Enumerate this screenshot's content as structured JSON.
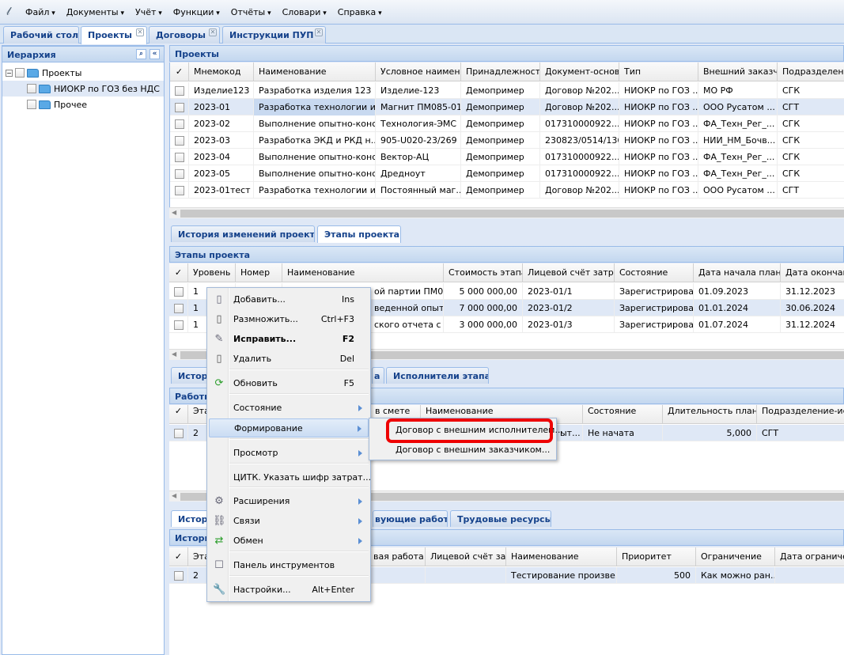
{
  "menubar": {
    "items": [
      "Файл",
      "Документы",
      "Учёт",
      "Функции",
      "Отчёты",
      "Словари",
      "Справка"
    ]
  },
  "tabs": [
    {
      "label": "Рабочий стол"
    },
    {
      "label": "Проекты"
    },
    {
      "label": "Договоры"
    },
    {
      "label": "Инструкции ПУП"
    }
  ],
  "hierarchy": {
    "title": "Иерархия",
    "nodes": [
      {
        "label": "Проекты"
      },
      {
        "label": "НИОКР по ГОЗ без НДС"
      },
      {
        "label": "Прочее"
      }
    ]
  },
  "projects": {
    "title": "Проекты",
    "columns": [
      "✓",
      "Мнемокод",
      "Наименование",
      "Условное наименова",
      "Принадлежность",
      "Документ-основан",
      "Тип",
      "Внешний заказчик",
      "Подразделение"
    ],
    "rows": [
      [
        "",
        "Изделие123",
        "Разработка изделия 123",
        "Изделие-123",
        "Демопример",
        "Договор №202...",
        "НИОКР по ГОЗ ...",
        "МО РФ",
        "СГК"
      ],
      [
        "",
        "2023-01",
        "Разработка технологии и...",
        "Магнит ПМ085-01",
        "Демопример",
        "Договор №202...",
        "НИОКР по ГОЗ ...",
        "ООО Русатом ...",
        "СГТ"
      ],
      [
        "",
        "2023-02",
        "Выполнение опытно-конс...",
        "Технология-ЭМС",
        "Демопример",
        "017310000922...",
        "НИОКР по ГОЗ ...",
        "ФА_Техн_Рег_...",
        "СГК"
      ],
      [
        "",
        "2023-03",
        "Разработка ЭКД и РКД н...",
        "905-U020-23/269",
        "Демопример",
        "230823/0514/136",
        "НИОКР по ГОЗ ...",
        "НИИ_НМ_Бочв...",
        "СГК"
      ],
      [
        "",
        "2023-04",
        "Выполнение опытно-конс...",
        "Вектор-АЦ",
        "Демопример",
        "017310000922...",
        "НИОКР по ГОЗ ...",
        "ФА_Техн_Рег_...",
        "СГК"
      ],
      [
        "",
        "2023-05",
        "Выполнение опытно-конс...",
        "Дредноут",
        "Демопример",
        "017310000922...",
        "НИОКР по ГОЗ ...",
        "ФА_Техн_Рег_...",
        "СГК"
      ],
      [
        "",
        "2023-01тест",
        "Разработка технологии и...",
        "Постоянный маг...",
        "Демопример",
        "Договор №202...",
        "НИОКР по ГОЗ ...",
        "ООО Русатом ...",
        "СГТ"
      ]
    ]
  },
  "subtabs1": [
    "История изменений проекта",
    "Этапы проекта"
  ],
  "stages": {
    "title": "Этапы проекта",
    "columns": [
      "✓",
      "Уровень",
      "Номер",
      "Наименование",
      "Стоимость этапа",
      "Лицевой счёт затрат",
      "Состояние",
      "Дата начала план",
      "Дата окончания"
    ],
    "rows": [
      [
        "",
        "1",
        "",
        "ой партии ПМ0...",
        "5 000 000,00",
        "2023-01/1",
        "Зарегистрирован",
        "01.09.2023",
        "31.12.2023"
      ],
      [
        "",
        "1",
        "",
        "веденной опыт...",
        "7 000 000,00",
        "2023-01/2",
        "Зарегистрирован",
        "01.01.2024",
        "30.06.2024"
      ],
      [
        "",
        "1",
        "",
        "ского отчета с ...",
        "3 000 000,00",
        "2023-01/3",
        "Зарегистрирован",
        "01.07.2024",
        "31.12.2024"
      ]
    ]
  },
  "subtabs2": [
    "Истор",
    "а",
    "Исполнители этапа"
  ],
  "works": {
    "title": "Работы",
    "columns": [
      "✓",
      "Эта",
      "в смете",
      "Наименование",
      "Состояние",
      "Длительность план",
      "Подразделение-исполнитель"
    ],
    "rows": [
      [
        "",
        "2",
        "",
        "ыт...",
        "Не начата",
        "5,000",
        "СГТ"
      ]
    ]
  },
  "subtabs3": [
    "Истор",
    "вующие работы",
    "Трудовые ресурсы"
  ],
  "history": {
    "title": "Истори",
    "columns": [
      "✓",
      "Эта",
      "вая работа",
      "Лицевой счёт затрат",
      "Наименование",
      "Приоритет",
      "Ограничение",
      "Дата ограничения"
    ],
    "rows": [
      [
        "",
        "2",
        "",
        "",
        "Тестирование произве...",
        "500",
        "Как можно ран...",
        ""
      ]
    ]
  },
  "context_menu": {
    "items": [
      {
        "label": "Добавить...",
        "shortcut": "Ins",
        "icon": "page-icon"
      },
      {
        "label": "Размножить...",
        "shortcut": "Ctrl+F3",
        "icon": "page-add-icon"
      },
      {
        "label": "Исправить...",
        "shortcut": "F2",
        "icon": "edit-icon"
      },
      {
        "label": "Удалить",
        "shortcut": "Del",
        "icon": "page-delete-icon"
      },
      {
        "label": "Обновить",
        "shortcut": "F5",
        "icon": "refresh-icon"
      },
      {
        "label": "Состояние",
        "shortcut": ""
      },
      {
        "label": "Формирование",
        "shortcut": ""
      },
      {
        "label": "Просмотр",
        "shortcut": ""
      },
      {
        "label": "ЦИТК. Указать шифр затрат...",
        "shortcut": ""
      },
      {
        "label": "Расширения",
        "shortcut": "",
        "icon": "extensions-icon"
      },
      {
        "label": "Связи",
        "shortcut": "",
        "icon": "links-icon"
      },
      {
        "label": "Обмен",
        "shortcut": "",
        "icon": "exchange-icon"
      },
      {
        "label": "Панель инструментов",
        "shortcut": "",
        "icon": "checkbox-icon"
      },
      {
        "label": "Настройки...",
        "shortcut": "Alt+Enter",
        "icon": "wrench-icon"
      }
    ]
  },
  "submenu": {
    "items": [
      "Договор с внешним исполнителем...",
      "Договор с внешним заказчиком..."
    ]
  },
  "colors": {
    "highlight": "#e00000",
    "accent": "#15428b",
    "selection": "#dfe8f6"
  }
}
